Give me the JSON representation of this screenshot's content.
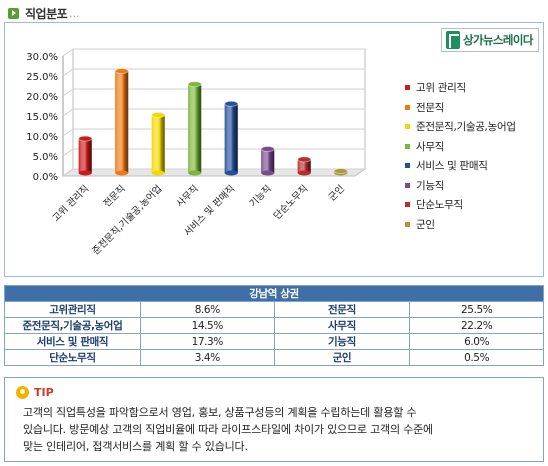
{
  "section": {
    "title": "직업분포",
    "dots": "..."
  },
  "brand": {
    "name": "상가뉴스레이다"
  },
  "chart_data": {
    "type": "bar",
    "categories": [
      "고위 관리직",
      "전문직",
      "준전문직,기술공,농어업",
      "사무직",
      "서비스 및 판매직",
      "기능직",
      "단순노무직",
      "군인"
    ],
    "values": [
      8.6,
      25.5,
      14.5,
      22.2,
      17.3,
      6.0,
      3.4,
      0.5
    ],
    "colors": [
      "#cc1b1b",
      "#ee7a16",
      "#f2d800",
      "#7ab63a",
      "#24509a",
      "#7a4a8e",
      "#b82e2e",
      "#a89a3a"
    ],
    "ylim": [
      0,
      30
    ],
    "yticks": [
      "0.0%",
      "5.0%",
      "10.0%",
      "15.0%",
      "20.0%",
      "25.0%",
      "30.0%"
    ],
    "grid": true,
    "legend_position": "right"
  },
  "stats": {
    "title": "강남역 상권",
    "rows": [
      [
        {
          "label": "고위관리직",
          "value": "8.6%"
        },
        {
          "label": "전문직",
          "value": "25.5%"
        }
      ],
      [
        {
          "label": "준전문직,기술공,농어업",
          "value": "14.5%"
        },
        {
          "label": "사무직",
          "value": "22.2%"
        }
      ],
      [
        {
          "label": "서비스 및 판매직",
          "value": "17.3%"
        },
        {
          "label": "기능직",
          "value": "6.0%"
        }
      ],
      [
        {
          "label": "단순노무직",
          "value": "3.4%"
        },
        {
          "label": "군인",
          "value": "0.5%"
        }
      ]
    ]
  },
  "tip": {
    "label": "TIP",
    "lines": [
      "고객의 직업특성을 파악함으로서 영업, 홍보, 상품구성등의 계획을 수립하는데 활용할 수",
      "있습니다. 방문예상 고객의 직업비율에 따라 라이프스타일에 차이가 있으므로 고객의 수준에",
      "맞는 인테리어, 접객서비스를 계획 할 수 있습니다."
    ]
  }
}
